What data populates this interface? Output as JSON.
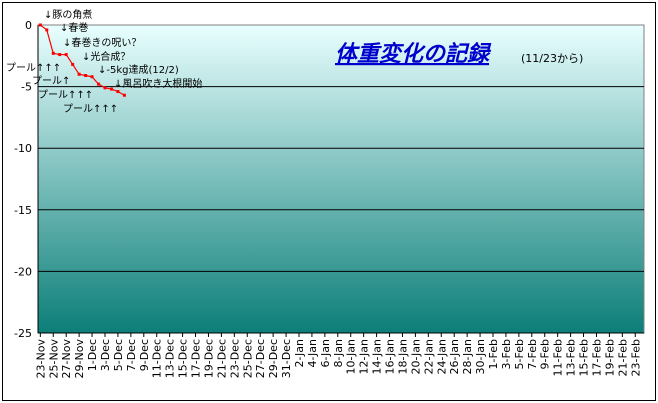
{
  "chart_data": {
    "type": "line",
    "title": "体重変化の記録",
    "subtitle": "(11/23から)",
    "xlabel": "",
    "ylabel": "",
    "ylim": [
      -25,
      0
    ],
    "yticks": [
      0,
      -5,
      -10,
      -15,
      -20,
      -25
    ],
    "grid": "horizontal",
    "legend": "none",
    "x_tick_labels": [
      "23-Nov",
      "25-Nov",
      "27-Nov",
      "29-Nov",
      "1-Dec",
      "3-Dec",
      "5-Dec",
      "7-Dec",
      "9-Dec",
      "11-Dec",
      "13-Dec",
      "15-Dec",
      "17-Dec",
      "19-Dec",
      "21-Dec",
      "23-Dec",
      "25-Dec",
      "27-Dec",
      "29-Dec",
      "31-Dec",
      "2-Jan",
      "4-Jan",
      "6-Jan",
      "8-Jan",
      "10-Jan",
      "12-Jan",
      "14-Jan",
      "16-Jan",
      "18-Jan",
      "20-Jan",
      "22-Jan",
      "24-Jan",
      "26-Jan",
      "28-Jan",
      "30-Jan",
      "1-Feb",
      "3-Feb",
      "5-Feb",
      "7-Feb",
      "9-Feb",
      "11-Feb",
      "13-Feb",
      "15-Feb",
      "17-Feb",
      "19-Feb",
      "21-Feb",
      "23-Feb"
    ],
    "series": [
      {
        "name": "",
        "color": "#ff0000",
        "x": [
          "23-Nov",
          "24-Nov",
          "25-Nov",
          "26-Nov",
          "27-Nov",
          "28-Nov",
          "29-Nov",
          "30-Nov",
          "1-Dec",
          "2-Dec",
          "3-Dec",
          "4-Dec",
          "5-Dec",
          "6-Dec"
        ],
        "values": [
          0,
          -0.4,
          -2.3,
          -2.4,
          -2.4,
          -3.2,
          -4.0,
          -4.1,
          -4.2,
          -4.8,
          -5.1,
          -5.2,
          -5.4,
          -5.7
        ]
      }
    ],
    "annotations": [
      {
        "text": "↓豚の角煮",
        "x": "23-Nov",
        "y": 0
      },
      {
        "text": "↓春巻",
        "x": "25-Nov",
        "y": -0.4
      },
      {
        "text": "↓春巻きの呪い？",
        "x": "26-Nov",
        "y": -2.4
      },
      {
        "text": "↓光合成？",
        "x": "28-Nov",
        "y": -3.2
      },
      {
        "text": "↓-5kg達成(12/2)",
        "x": "2-Dec",
        "y": -4.8
      },
      {
        "text": "↓風呂吹き大根開始",
        "x": "6-Dec",
        "y": -5.7
      },
      {
        "text": "プール↑↑↑",
        "x": "25-Nov",
        "y": -2.3
      },
      {
        "text": "プール↑",
        "x": "27-Nov",
        "y": -2.4
      },
      {
        "text": "プール↑↑↑",
        "x": "29-Nov",
        "y": -4.0
      },
      {
        "text": "プール↑↑↑",
        "x": "3-Dec",
        "y": -5.1
      }
    ],
    "colors": {
      "plot_top": "#e9ffff",
      "plot_bottom": "#0c7e78",
      "line": "#ff0000",
      "grid": "#000000"
    }
  }
}
